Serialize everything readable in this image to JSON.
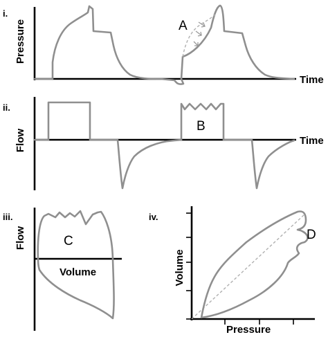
{
  "panels": {
    "i": {
      "label": "i.",
      "y_axis": "Pressure",
      "x_axis": "Time",
      "annotation": "A"
    },
    "ii": {
      "label": "ii.",
      "y_axis": "Flow",
      "x_axis": "Time",
      "annotation": "B"
    },
    "iii": {
      "label": "iii.",
      "y_axis": "Flow",
      "x_axis": "Volume",
      "annotation": "C"
    },
    "iv": {
      "label": "iv.",
      "y_axis": "Volume",
      "x_axis": "Pressure",
      "annotation": "D"
    }
  },
  "colors": {
    "curve": "#8f8f8f",
    "axis": "#000000",
    "arrow": "#999999"
  }
}
